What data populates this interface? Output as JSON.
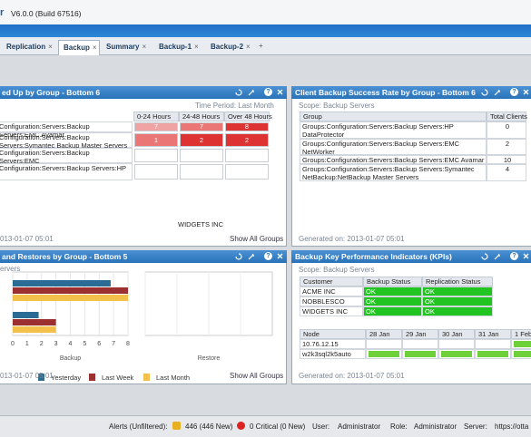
{
  "header": {
    "app_fragment": "r",
    "version": "V6.0.0 (Build 67516)"
  },
  "tabs": {
    "items": [
      "Replication",
      "Backup",
      "Summary",
      "Backup-1",
      "Backup-2"
    ],
    "close": "×",
    "add": "+"
  },
  "panels": {
    "help": "?",
    "not_backed_up": {
      "title": "ed Up by Group - Bottom 6",
      "time_period": "Time Period: Last Month",
      "columns": [
        "0-24 Hours",
        "24-48 Hours",
        "Over 48 Hours"
      ],
      "rows": [
        {
          "group": "Configuration:Servers:Backup Servers:EMC Avamar",
          "cells": [
            {
              "value": 7,
              "color": "#f0a3a3"
            },
            {
              "value": 7,
              "color": "#ea7676"
            },
            {
              "value": 8,
              "color": "#dd3333"
            }
          ]
        },
        {
          "group": "Configuration:Servers:Backup Servers:Symantec Backup Master Servers",
          "cells": [
            {
              "value": 1,
              "color": "#ea7676"
            },
            {
              "value": 2,
              "color": "#dd3333"
            },
            {
              "value": 2,
              "color": "#dd3333"
            }
          ]
        },
        {
          "group": "Configuration:Servers:Backup Servers:EMC",
          "cells": []
        },
        {
          "group": "Configuration:Servers:Backup Servers:HP",
          "cells": []
        }
      ],
      "customer": "WIDGETS INC",
      "generated": "013-01-07 05:01",
      "show_all": "Show All Groups"
    },
    "success_rate": {
      "title": "Client Backup Success Rate by Group - Bottom 6",
      "scope": "Scope: Backup Servers",
      "columns": [
        "Group",
        "Total Clients"
      ],
      "rows": [
        [
          "Groups:Configuration:Servers:Backup Servers:HP DataProtector",
          0
        ],
        [
          "Groups:Configuration:Servers:Backup Servers:EMC NetWorker",
          2
        ],
        [
          "Groups:Configuration:Servers:Backup Servers:EMC Avamar",
          10
        ],
        [
          "Groups:Configuration:Servers:Backup Servers:Symantec NetBackup:NetBackup Master Servers",
          4
        ]
      ],
      "generated": "Generated on: 2013-01-07 05:01"
    },
    "restores": {
      "title": "and Restores by Group - Bottom 5",
      "scope": "ervers",
      "chart": {
        "type": "bar",
        "categories": [
          null,
          null
        ],
        "series": [
          {
            "name": "Yesterday",
            "color": "#2b6c94",
            "values": [
              6.8,
              1.8
            ]
          },
          {
            "name": "Last Week",
            "color": "#9c2f2f",
            "values": [
              8,
              3
            ]
          },
          {
            "name": "Last Month",
            "color": "#f4c04c",
            "values": [
              8,
              3
            ]
          }
        ],
        "xlim": [
          0,
          8
        ],
        "xticks": [
          0,
          1,
          2,
          3,
          4,
          5,
          6,
          7,
          8
        ],
        "xlabel": "Backup",
        "x2label": "Restore",
        "grid": true
      },
      "generated": "013-01-07 05:01",
      "show_all": "Show All Groups"
    },
    "kpi": {
      "title": "Backup Key Performance Indicators (KPIs)",
      "scope": "Scope: Backup Servers",
      "columns": [
        "Customer",
        "Backup Status",
        "Replication Status"
      ],
      "rows": [
        [
          "ACME INC",
          "OK",
          "OK"
        ],
        [
          "NOBBLESCO",
          "OK",
          "OK"
        ],
        [
          "WIDGETS INC",
          "OK",
          "OK"
        ]
      ],
      "ok_color": "#22c422",
      "node_columns": [
        "Node",
        "28 Jan",
        "29 Jan",
        "30 Jan",
        "31 Jan",
        "1 Feb"
      ],
      "nodes": [
        {
          "name": "10.76.12.15",
          "fills": [
            null,
            null,
            null,
            null,
            "#6fd13a"
          ]
        },
        {
          "name": "w2k3sql2k5auto",
          "fills": [
            "#6fd13a",
            "#6fd13a",
            "#6fd13a",
            "#6fd13a",
            "#6fd13a"
          ]
        }
      ],
      "generated": "Generated on: 2013-01-07 05:01"
    }
  },
  "status_bar": {
    "alerts_label": "Alerts (Unfiltered):",
    "alerts": "446 (446 New)",
    "critical": "0 Critical (0 New)",
    "user_label": "User:",
    "user": "Administrator",
    "role_label": "Role:",
    "role": "Administrator",
    "server_label": "Server:",
    "server": "https://otta"
  }
}
